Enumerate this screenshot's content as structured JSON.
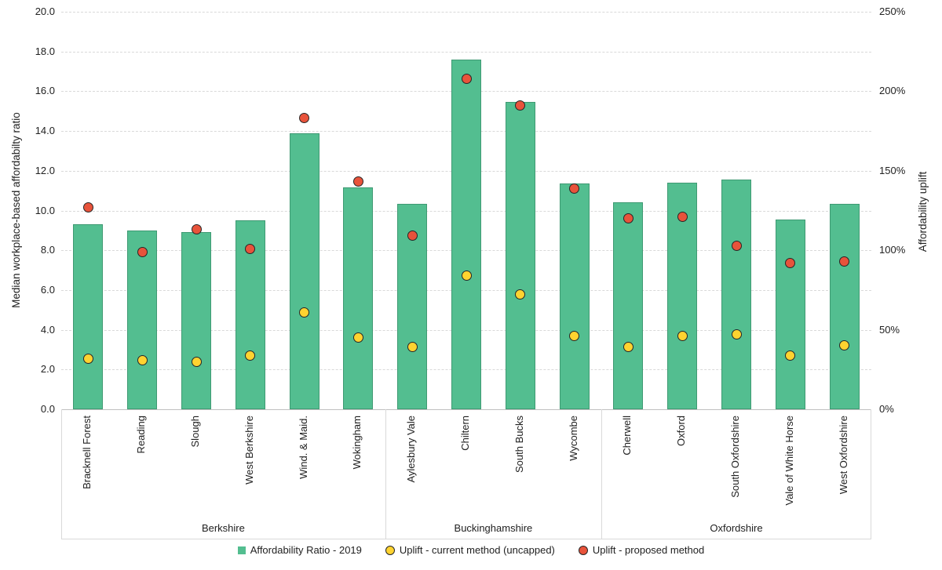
{
  "chart_data": {
    "type": "bar",
    "title": "",
    "categories": [
      "Bracknell Forest",
      "Reading",
      "Slough",
      "West Berkshire",
      "Wind. & Maid.",
      "Wokingham",
      "Aylesbury Vale",
      "Chiltern",
      "South Bucks",
      "Wycombe",
      "Cherwell",
      "Oxford",
      "South Oxfordshire",
      "Vale of White Horse",
      "West Oxfordshire"
    ],
    "groups": [
      {
        "label": "Berkshire",
        "count": 6
      },
      {
        "label": "Buckinghamshire",
        "count": 4
      },
      {
        "label": "Oxfordshire",
        "count": 5
      }
    ],
    "series": [
      {
        "name": "Affordability Ratio - 2019",
        "type": "bar",
        "axis": "left",
        "color": "#53be90",
        "values": [
          9.3,
          9.0,
          8.9,
          9.5,
          13.9,
          11.15,
          10.35,
          17.6,
          15.45,
          11.35,
          10.4,
          11.4,
          11.55,
          9.55,
          10.35
        ]
      },
      {
        "name": "Uplift - current method (uncapped)",
        "type": "scatter",
        "axis": "right",
        "color": "#ffd330",
        "values_pct": [
          32,
          31,
          30,
          34,
          61,
          45,
          39,
          84,
          72,
          46,
          39,
          46,
          47,
          34,
          40
        ]
      },
      {
        "name": "Uplift - proposed method",
        "type": "scatter",
        "axis": "right",
        "color": "#e8533b",
        "values_pct": [
          127,
          99,
          113,
          101,
          183,
          143,
          109,
          208,
          191,
          139,
          120,
          121,
          103,
          92,
          93
        ]
      }
    ],
    "left_axis": {
      "label": "Median workplace-based affordabilty ratio",
      "min": 0,
      "max": 20,
      "tick_step": 2,
      "ticks": [
        "0.0",
        "2.0",
        "4.0",
        "6.0",
        "8.0",
        "10.0",
        "12.0",
        "14.0",
        "16.0",
        "18.0",
        "20.0"
      ]
    },
    "right_axis": {
      "label": "Affordability uplift",
      "min": 0,
      "max": 250,
      "tick_step": 50,
      "ticks": [
        "0%",
        "50%",
        "100%",
        "150%",
        "200%",
        "250%"
      ]
    },
    "grid": true,
    "legend_position": "bottom",
    "colors": {
      "bar_fill": "#53be90",
      "dot_current_fill": "#ffd330",
      "dot_proposed_fill": "#e8533b",
      "marker_outline": "#262626",
      "gridline": "#d9d9d9",
      "axis_line": "#bfbfbf",
      "text": "#212121"
    }
  }
}
